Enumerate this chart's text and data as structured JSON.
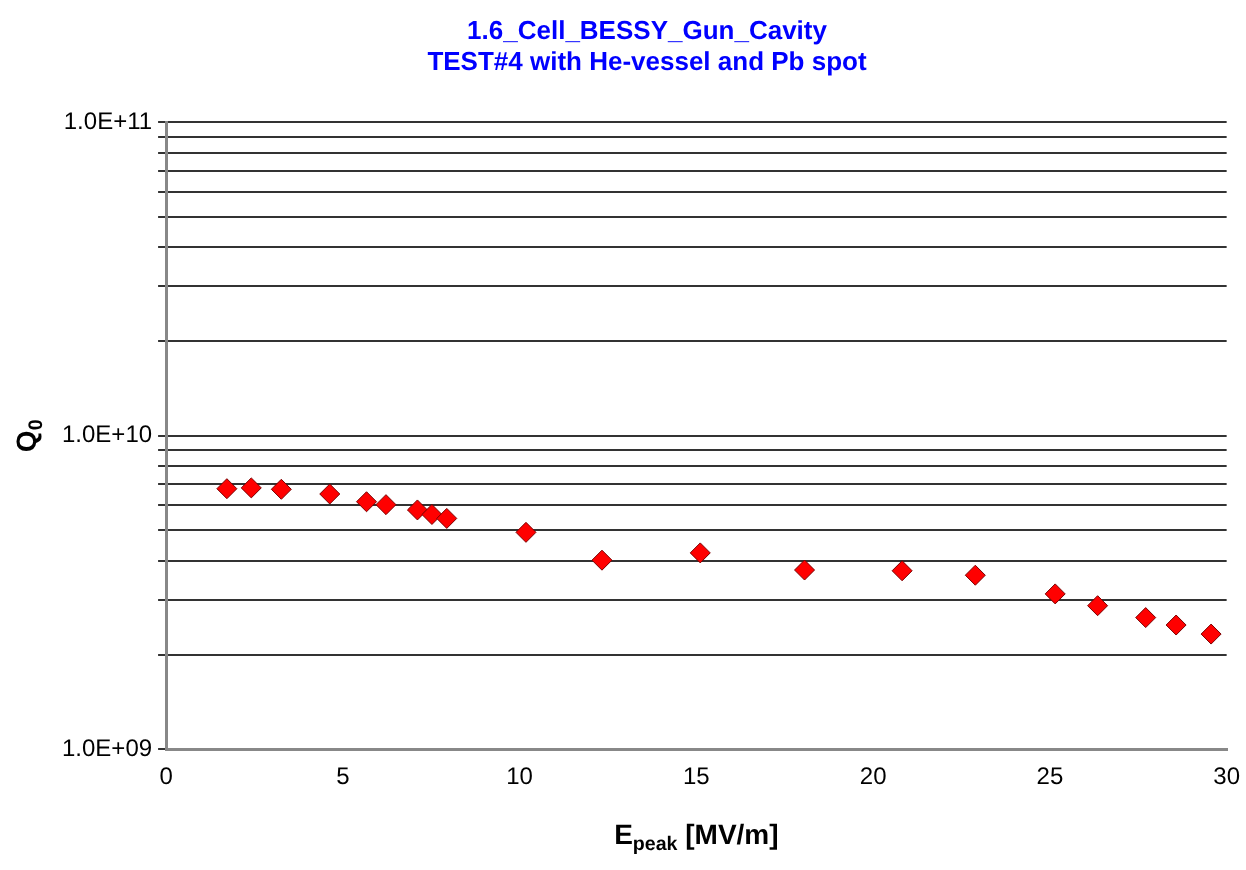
{
  "chart_data": {
    "type": "scatter",
    "title": "1.6_Cell_BESSY_Gun_Cavity",
    "subtitle": "TEST#4 with He-vessel and Pb spot",
    "xlabel": "E$_{peak}$ [MV/m]",
    "ylabel": "Q$_{0}$",
    "x": [
      1.72,
      2.41,
      3.26,
      4.63,
      5.67,
      6.22,
      7.11,
      7.52,
      7.94,
      10.18,
      12.33,
      15.11,
      18.06,
      20.82,
      22.89,
      25.15,
      26.35,
      27.71,
      28.57,
      29.56
    ],
    "series": [
      {
        "color": "#ff0000",
        "values": [
          6780000000.0,
          6820000000.0,
          6750000000.0,
          6520000000.0,
          6160000000.0,
          6030000000.0,
          5800000000.0,
          5610000000.0,
          5450000000.0,
          4920000000.0,
          4010000000.0,
          4230000000.0,
          3730000000.0,
          3710000000.0,
          3590000000.0,
          3130000000.0,
          2870000000.0,
          2630000000.0,
          2490000000.0,
          2330000000.0
        ]
      }
    ],
    "log": "y",
    "grid": "y",
    "legend": false,
    "marker": "diamond",
    "xlim": [
      0,
      30
    ],
    "xticks": [
      0,
      5,
      10,
      15,
      20,
      25,
      30
    ],
    "ylim": [
      1000000000.0,
      100000000000.0
    ],
    "yticks": [
      {
        "value": 1000000000.0,
        "label": "1.0E+09"
      },
      {
        "value": 2000000000.0,
        "label": null
      },
      {
        "value": 3000000000.0,
        "label": null
      },
      {
        "value": 4000000000.0,
        "label": null
      },
      {
        "value": 5000000000.0,
        "label": null
      },
      {
        "value": 6000000000.0,
        "label": null
      },
      {
        "value": 7000000000.0,
        "label": null
      },
      {
        "value": 8000000000.0,
        "label": null
      },
      {
        "value": 9000000000.0,
        "label": null
      },
      {
        "value": 10000000000.0,
        "label": "1.0E+10"
      },
      {
        "value": 20000000000.0,
        "label": null
      },
      {
        "value": 30000000000.0,
        "label": null
      },
      {
        "value": 40000000000.0,
        "label": null
      },
      {
        "value": 50000000000.0,
        "label": null
      },
      {
        "value": 60000000000.0,
        "label": null
      },
      {
        "value": 70000000000.0,
        "label": null
      },
      {
        "value": 80000000000.0,
        "label": null
      },
      {
        "value": 90000000000.0,
        "label": null
      },
      {
        "value": 100000000000.0,
        "label": "1.0E+11"
      }
    ]
  }
}
